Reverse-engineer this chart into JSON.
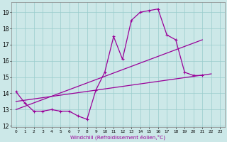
{
  "xlabel": "Windchill (Refroidissement éolien,°C)",
  "bg_color": "#cce8e8",
  "grid_color": "#99cccc",
  "line_color": "#990099",
  "x_data": [
    0,
    1,
    2,
    3,
    4,
    5,
    6,
    7,
    8,
    9,
    10,
    11,
    12,
    13,
    14,
    15,
    16,
    17,
    18,
    19,
    20,
    21,
    22,
    23
  ],
  "y_main": [
    14.1,
    13.4,
    12.9,
    12.9,
    13.0,
    12.9,
    12.9,
    12.6,
    12.4,
    14.2,
    15.3,
    17.5,
    16.1,
    18.5,
    19.0,
    19.1,
    19.2,
    17.6,
    17.3,
    15.3,
    15.1,
    15.1,
    null,
    null
  ],
  "y_trend1_start": 13.0,
  "y_trend1_end_x": 21,
  "y_trend1_end": 17.3,
  "y_trend2_start": 13.5,
  "y_trend2_end_x": 22,
  "y_trend2_end": 15.2,
  "ylim": [
    11.9,
    19.6
  ],
  "xlim": [
    -0.5,
    23.5
  ],
  "yticks": [
    12,
    13,
    14,
    15,
    16,
    17,
    18,
    19
  ],
  "xticks": [
    0,
    1,
    2,
    3,
    4,
    5,
    6,
    7,
    8,
    9,
    10,
    11,
    12,
    13,
    14,
    15,
    16,
    17,
    18,
    19,
    20,
    21,
    22,
    23
  ]
}
